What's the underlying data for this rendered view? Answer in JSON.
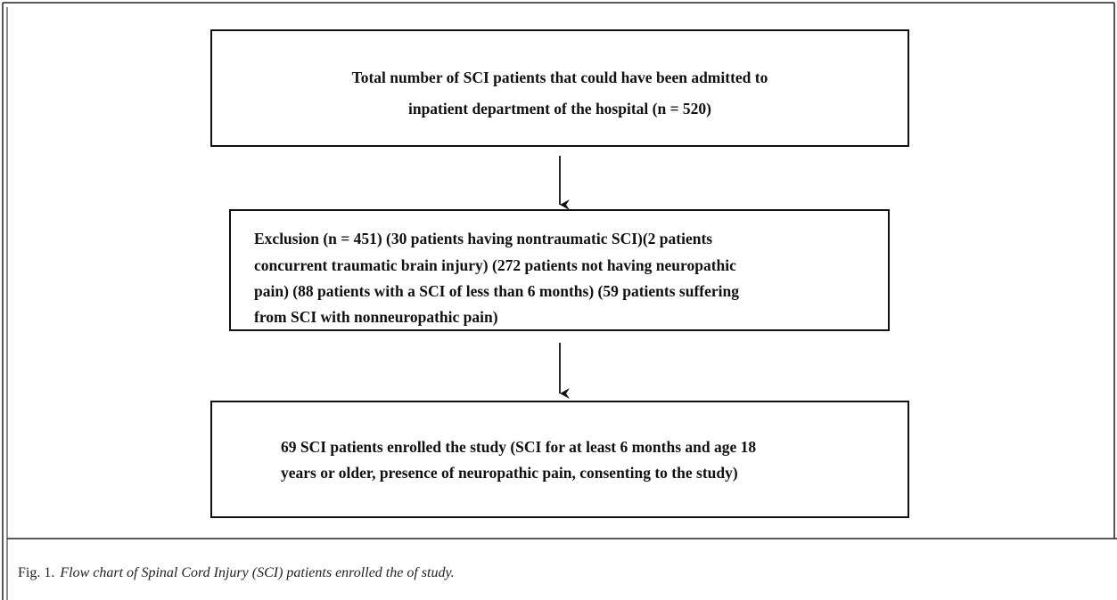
{
  "boxes": [
    {
      "lines": [
        "Total number of SCI patients that could have been admitted to",
        "inpatient department of the hospital (n = 520)"
      ]
    },
    {
      "lines": [
        "Exclusion (n = 451) (30 patients having nontraumatic SCI)(2 patients",
        "concurrent traumatic brain injury) (272 patients not having neuropathic",
        "pain) (88 patients with a SCI of less than 6 months) (59 patients suffering",
        "from SCI with nonneuropathic pain)"
      ]
    },
    {
      "lines": [
        "69 SCI patients enrolled the study (SCI for at least 6 months and age 18",
        "years or older, presence of neuropathic pain, consenting to the study)"
      ]
    }
  ],
  "caption": {
    "label": "Fig. 1.",
    "text": "Flow chart of Spinal Cord Injury (SCI) patients enrolled the of study."
  }
}
